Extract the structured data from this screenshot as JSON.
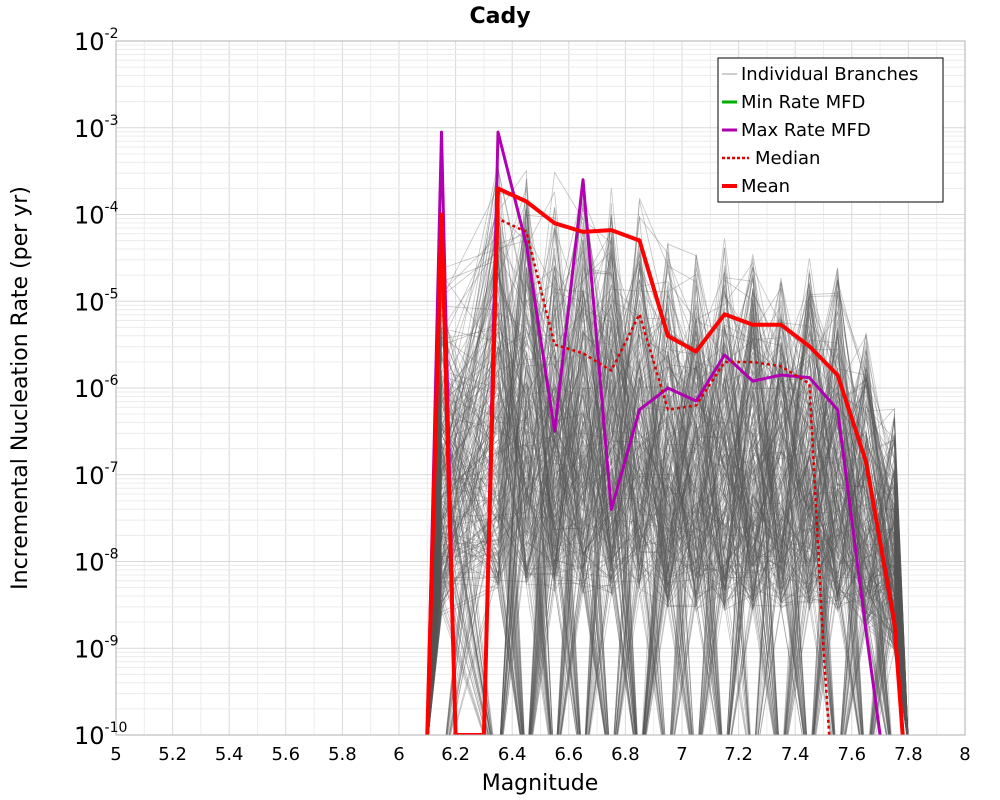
{
  "chart_data": {
    "type": "line",
    "title": "Cady",
    "xlabel": "Magnitude",
    "ylabel": "Incremental Nucleation Rate (per yr)",
    "xlim": [
      5,
      8
    ],
    "ylim_log10": [
      -10,
      -2
    ],
    "yscale": "log",
    "grid": true,
    "x_ticks": [
      "5",
      "5.2",
      "5.4",
      "5.6",
      "5.8",
      "6",
      "6.2",
      "6.4",
      "6.6",
      "6.8",
      "7",
      "7.2",
      "7.4",
      "7.6",
      "7.8",
      "8"
    ],
    "y_ticks": [
      {
        "base": "10",
        "exp": "-2"
      },
      {
        "base": "10",
        "exp": "-3"
      },
      {
        "base": "10",
        "exp": "-4"
      },
      {
        "base": "10",
        "exp": "-5"
      },
      {
        "base": "10",
        "exp": "-6"
      },
      {
        "base": "10",
        "exp": "-7"
      },
      {
        "base": "10",
        "exp": "-8"
      },
      {
        "base": "10",
        "exp": "-9"
      },
      {
        "base": "10",
        "exp": "-10"
      }
    ],
    "legend_position": "top-right",
    "legend": [
      {
        "label": "Individual Branches",
        "color": "#9e9e9e",
        "style": "thin"
      },
      {
        "label": "Min Rate MFD",
        "color": "#00b000",
        "style": "solid"
      },
      {
        "label": "Max Rate MFD",
        "color": "#b000b0",
        "style": "solid"
      },
      {
        "label": "Median",
        "color": "#e00000",
        "style": "dotted"
      },
      {
        "label": "Mean",
        "color": "#ff0000",
        "style": "thick"
      }
    ],
    "branches": {
      "color": "#555555",
      "count": 260,
      "x": [
        6.15,
        6.35,
        6.45,
        6.55,
        6.65,
        6.75,
        6.85,
        6.95,
        7.05,
        7.15,
        7.25,
        7.35,
        7.45,
        7.55,
        7.65,
        7.75
      ],
      "upper_log10": [
        -4.5,
        -3.25,
        -3.3,
        -3.4,
        -3.5,
        -3.55,
        -3.6,
        -4.2,
        -4.3,
        -4.25,
        -4.25,
        -4.25,
        -4.3,
        -4.4,
        -5.2,
        -6.2
      ],
      "lower_log10": [
        -10,
        -10,
        -10,
        -10,
        -10,
        -10,
        -10,
        -10,
        -10,
        -10,
        -10,
        -10,
        -10,
        -10,
        -10,
        -10
      ]
    },
    "series": [
      {
        "name": "Max Rate MFD",
        "color": "#b000b0",
        "width": 3,
        "dash": "",
        "x": [
          6.1,
          6.15,
          6.2,
          6.3,
          6.35,
          6.45,
          6.55,
          6.65,
          6.75,
          6.85,
          6.95,
          7.05,
          7.15,
          7.25,
          7.35,
          7.45,
          7.55,
          7.65,
          7.7
        ],
        "y_log10": [
          -10.0,
          -3.05,
          -10.0,
          -10.0,
          -3.05,
          -4.35,
          -6.5,
          -3.6,
          -7.4,
          -6.25,
          -6.0,
          -6.15,
          -5.62,
          -5.92,
          -5.85,
          -5.88,
          -6.25,
          -8.8,
          -10.0
        ]
      },
      {
        "name": "Median",
        "color": "#e00000",
        "width": 2.5,
        "dash": "3,3",
        "x": [
          6.1,
          6.15,
          6.2,
          6.3,
          6.35,
          6.45,
          6.55,
          6.65,
          6.75,
          6.85,
          6.95,
          7.05,
          7.15,
          7.25,
          7.35,
          7.45,
          7.5,
          7.52
        ],
        "y_log10": [
          -10.0,
          -4.0,
          -10.0,
          -10.0,
          -4.05,
          -4.2,
          -5.5,
          -5.6,
          -5.8,
          -5.15,
          -6.25,
          -6.2,
          -5.7,
          -5.7,
          -5.75,
          -5.95,
          -9.0,
          -10.0
        ]
      },
      {
        "name": "Mean",
        "color": "#ff0000",
        "width": 4,
        "dash": "",
        "x": [
          6.1,
          6.15,
          6.2,
          6.3,
          6.35,
          6.45,
          6.55,
          6.65,
          6.75,
          6.85,
          6.95,
          7.05,
          7.15,
          7.25,
          7.35,
          7.45,
          7.55,
          7.65,
          7.75,
          7.78
        ],
        "y_log10": [
          -10.0,
          -4.0,
          -10.0,
          -10.0,
          -3.7,
          -3.85,
          -4.1,
          -4.2,
          -4.18,
          -4.3,
          -5.4,
          -5.58,
          -5.15,
          -5.27,
          -5.27,
          -5.52,
          -5.85,
          -6.85,
          -8.7,
          -10.0
        ]
      }
    ]
  }
}
